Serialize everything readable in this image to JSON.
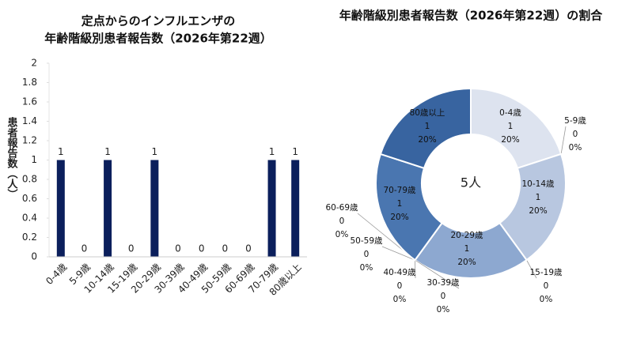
{
  "chart_data": [
    {
      "type": "bar",
      "title": [
        "定点からのインフルエンザの",
        "年齢階級別患者報告数（2026年第22週）"
      ],
      "y_label": "患者報告数（人）",
      "categories": [
        "0-4歳",
        "5-9歳",
        "10-14歳",
        "15-19歳",
        "20-29歳",
        "30-39歳",
        "40-49歳",
        "50-59歳",
        "60-69歳",
        "70-79歳",
        "80歳以上"
      ],
      "values": [
        1,
        0,
        1,
        0,
        1,
        0,
        0,
        0,
        0,
        1,
        1
      ],
      "color": "#0b1f5c",
      "ylim": [
        0,
        2
      ],
      "yticks": [
        0,
        0.2,
        0.4,
        0.6,
        0.8,
        1,
        1.2,
        1.4,
        1.6,
        1.8,
        2
      ]
    },
    {
      "type": "donut",
      "title": "年齢階級別患者報告数（2026年第22週）の割合",
      "center_label": "5人",
      "categories": [
        "0-4歳",
        "5-9歳",
        "10-14歳",
        "15-19歳",
        "20-29歳",
        "30-39歳",
        "40-49歳",
        "50-59歳",
        "60-69歳",
        "70-79歳",
        "80歳以上"
      ],
      "values": [
        1,
        0,
        1,
        0,
        1,
        0,
        0,
        0,
        0,
        1,
        1
      ],
      "percent_labels": [
        "20%",
        "0%",
        "20%",
        "0%",
        "20%",
        "0%",
        "0%",
        "0%",
        "0%",
        "20%",
        "20%"
      ],
      "colors": [
        "#dde3ef",
        "#ccd6e8",
        "#b8c7e0",
        "#a4b8d8",
        "#8da8d0",
        "#7a98c6",
        "#6a8bbe",
        "#5d82b8",
        "#5479b2",
        "#4a76b0",
        "#3864a0"
      ]
    }
  ]
}
